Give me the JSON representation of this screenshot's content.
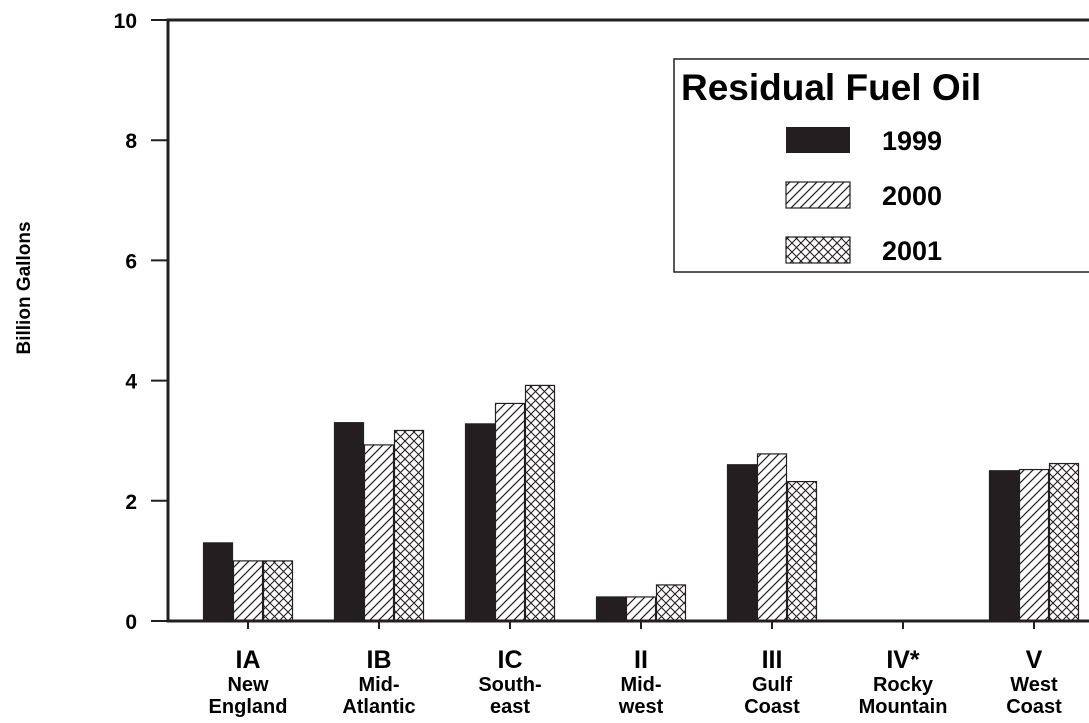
{
  "chart_data": {
    "type": "bar",
    "ylabel": "Billion Gallons",
    "ylim": [
      0,
      10
    ],
    "yticks": [
      "0",
      "2",
      "4",
      "6",
      "8",
      "10"
    ],
    "legend_title": "Residual Fuel Oil",
    "legend_placement": "top-right",
    "grid": false,
    "categories": [
      {
        "code": "IA",
        "name": [
          "New",
          "England"
        ]
      },
      {
        "code": "IB",
        "name": [
          "Mid-",
          "Atlantic"
        ]
      },
      {
        "code": "IC",
        "name": [
          "South-",
          "east"
        ]
      },
      {
        "code": "II",
        "name": [
          "Mid-",
          "west"
        ]
      },
      {
        "code": "III",
        "name": [
          "Gulf",
          "Coast"
        ]
      },
      {
        "code": "IV*",
        "name": [
          "Rocky",
          "Mountain"
        ]
      },
      {
        "code": "V",
        "name": [
          "West",
          "Coast"
        ]
      }
    ],
    "series": [
      {
        "name": "1999",
        "fill": "solid",
        "color": "#231f20",
        "values": [
          1.3,
          3.3,
          3.28,
          0.4,
          2.6,
          0,
          2.5
        ]
      },
      {
        "name": "2000",
        "fill": "diagonal-hatch",
        "color": "#231f20",
        "values": [
          1.0,
          2.93,
          3.62,
          0.4,
          2.78,
          0,
          2.52
        ]
      },
      {
        "name": "2001",
        "fill": "crosshatch",
        "color": "#231f20",
        "values": [
          1.0,
          3.17,
          3.92,
          0.6,
          2.32,
          0,
          2.62
        ]
      }
    ]
  }
}
